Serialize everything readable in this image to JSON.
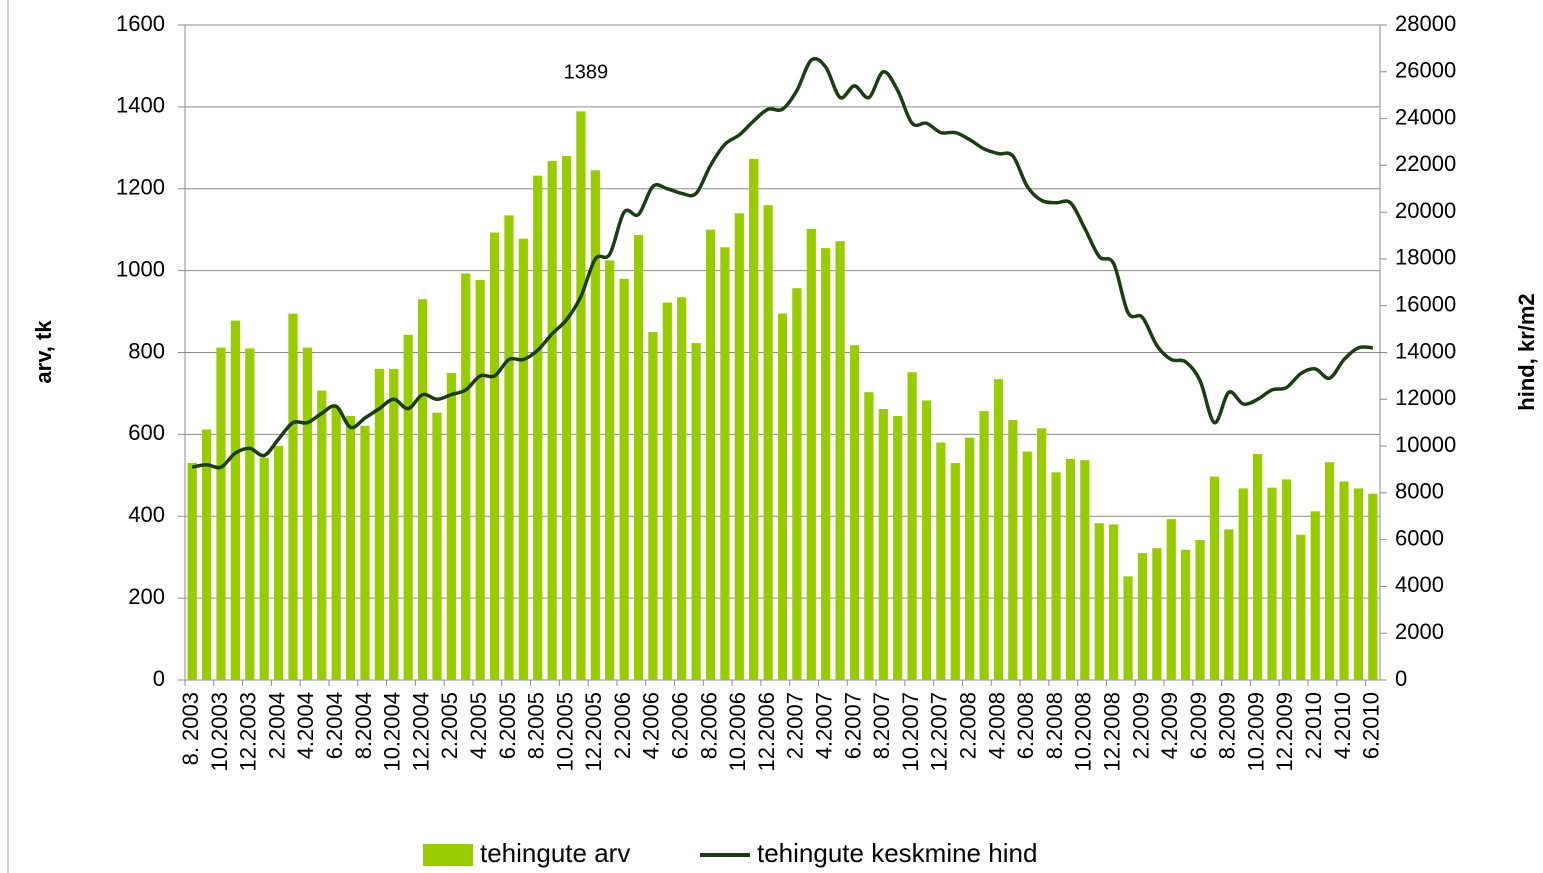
{
  "chart_data": {
    "type": "bar_line",
    "categories": [
      "8. 2003",
      null,
      "10.2003",
      null,
      "12.2003",
      null,
      "2.2004",
      null,
      "4.2004",
      null,
      "6.2004",
      null,
      "8.2004",
      null,
      "10.2004",
      null,
      "12.2004",
      null,
      "2.2005",
      null,
      "4.2005",
      null,
      "6.2005",
      null,
      "8.2005",
      null,
      "10.2005",
      null,
      "12.2005",
      null,
      "2.2006",
      null,
      "4.2006",
      null,
      "6.2006",
      null,
      "8.2006",
      null,
      "10.2006",
      null,
      "12.2006",
      null,
      "2.2007",
      null,
      "4.2007",
      null,
      "6.2007",
      null,
      "8.2007",
      null,
      "10.2007",
      null,
      "12.2007",
      null,
      "2.2008",
      null,
      "4.2008",
      null,
      "6.2008",
      null,
      "8.2008",
      null,
      "10.2008",
      null,
      "12.2008",
      null,
      "2.2009",
      null,
      "4.2009",
      null,
      "6.2009",
      null,
      "8.2009",
      null,
      "10.2009",
      null,
      "12.2009",
      null,
      "2.2010",
      null,
      "4.2010",
      null,
      "6.2010"
    ],
    "series": [
      {
        "name": "tehingute arv",
        "color": "#99cc00",
        "type": "bar",
        "values": [
          530,
          612,
          812,
          878,
          810,
          543,
          572,
          895,
          812,
          707,
          666,
          645,
          621,
          760,
          760,
          843,
          930,
          653,
          750,
          993,
          977,
          1093,
          1135,
          1078,
          1232,
          1268,
          1280,
          1389,
          1245,
          1025,
          980,
          1087,
          850,
          922,
          935,
          823,
          1100,
          1057,
          1140,
          1273,
          1160,
          895,
          957,
          1102,
          1055,
          1072,
          818,
          703,
          662,
          645,
          752,
          683,
          580,
          530,
          592,
          657,
          735,
          635,
          558,
          615,
          507,
          540,
          537,
          383,
          380,
          253,
          310,
          322,
          393,
          318,
          342,
          497,
          368,
          468,
          552,
          470,
          490,
          355,
          412,
          532,
          485,
          468,
          455
        ]
      },
      {
        "name": "tehingute keskmine hind",
        "color": "#1a3d12",
        "type": "line",
        "axis": "y2",
        "values": [
          9100,
          9200,
          9100,
          9700,
          9900,
          9600,
          10300,
          11000,
          11000,
          11400,
          11700,
          10800,
          11200,
          11600,
          12000,
          11600,
          12200,
          12000,
          12200,
          12400,
          13000,
          13000,
          13700,
          13700,
          14100,
          14800,
          15400,
          16400,
          18000,
          18200,
          20000,
          19900,
          21100,
          21000,
          20800,
          20800,
          22000,
          22900,
          23300,
          23900,
          24400,
          24400,
          25200,
          26500,
          26200,
          24900,
          25400,
          24900,
          26000,
          25200,
          23800,
          23800,
          23400,
          23400,
          23100,
          22700,
          22500,
          22400,
          21100,
          20500,
          20400,
          20400,
          19300,
          18100,
          17800,
          15700,
          15500,
          14300,
          13700,
          13600,
          12800,
          11000,
          12300,
          11800,
          12000,
          12400,
          12500,
          13100,
          13300,
          12900,
          13700,
          14200,
          14200
        ]
      }
    ],
    "ylabel": "arv, tk",
    "y2label": "hind, kr/m2",
    "ylim": [
      0,
      1600
    ],
    "yticks": [
      0,
      200,
      400,
      600,
      800,
      1000,
      1200,
      1400,
      1600
    ],
    "y2lim": [
      0,
      28000
    ],
    "y2ticks": [
      0,
      2000,
      4000,
      6000,
      8000,
      10000,
      12000,
      14000,
      16000,
      18000,
      20000,
      22000,
      24000,
      26000,
      28000
    ],
    "grid": true,
    "legend": "bottom"
  }
}
